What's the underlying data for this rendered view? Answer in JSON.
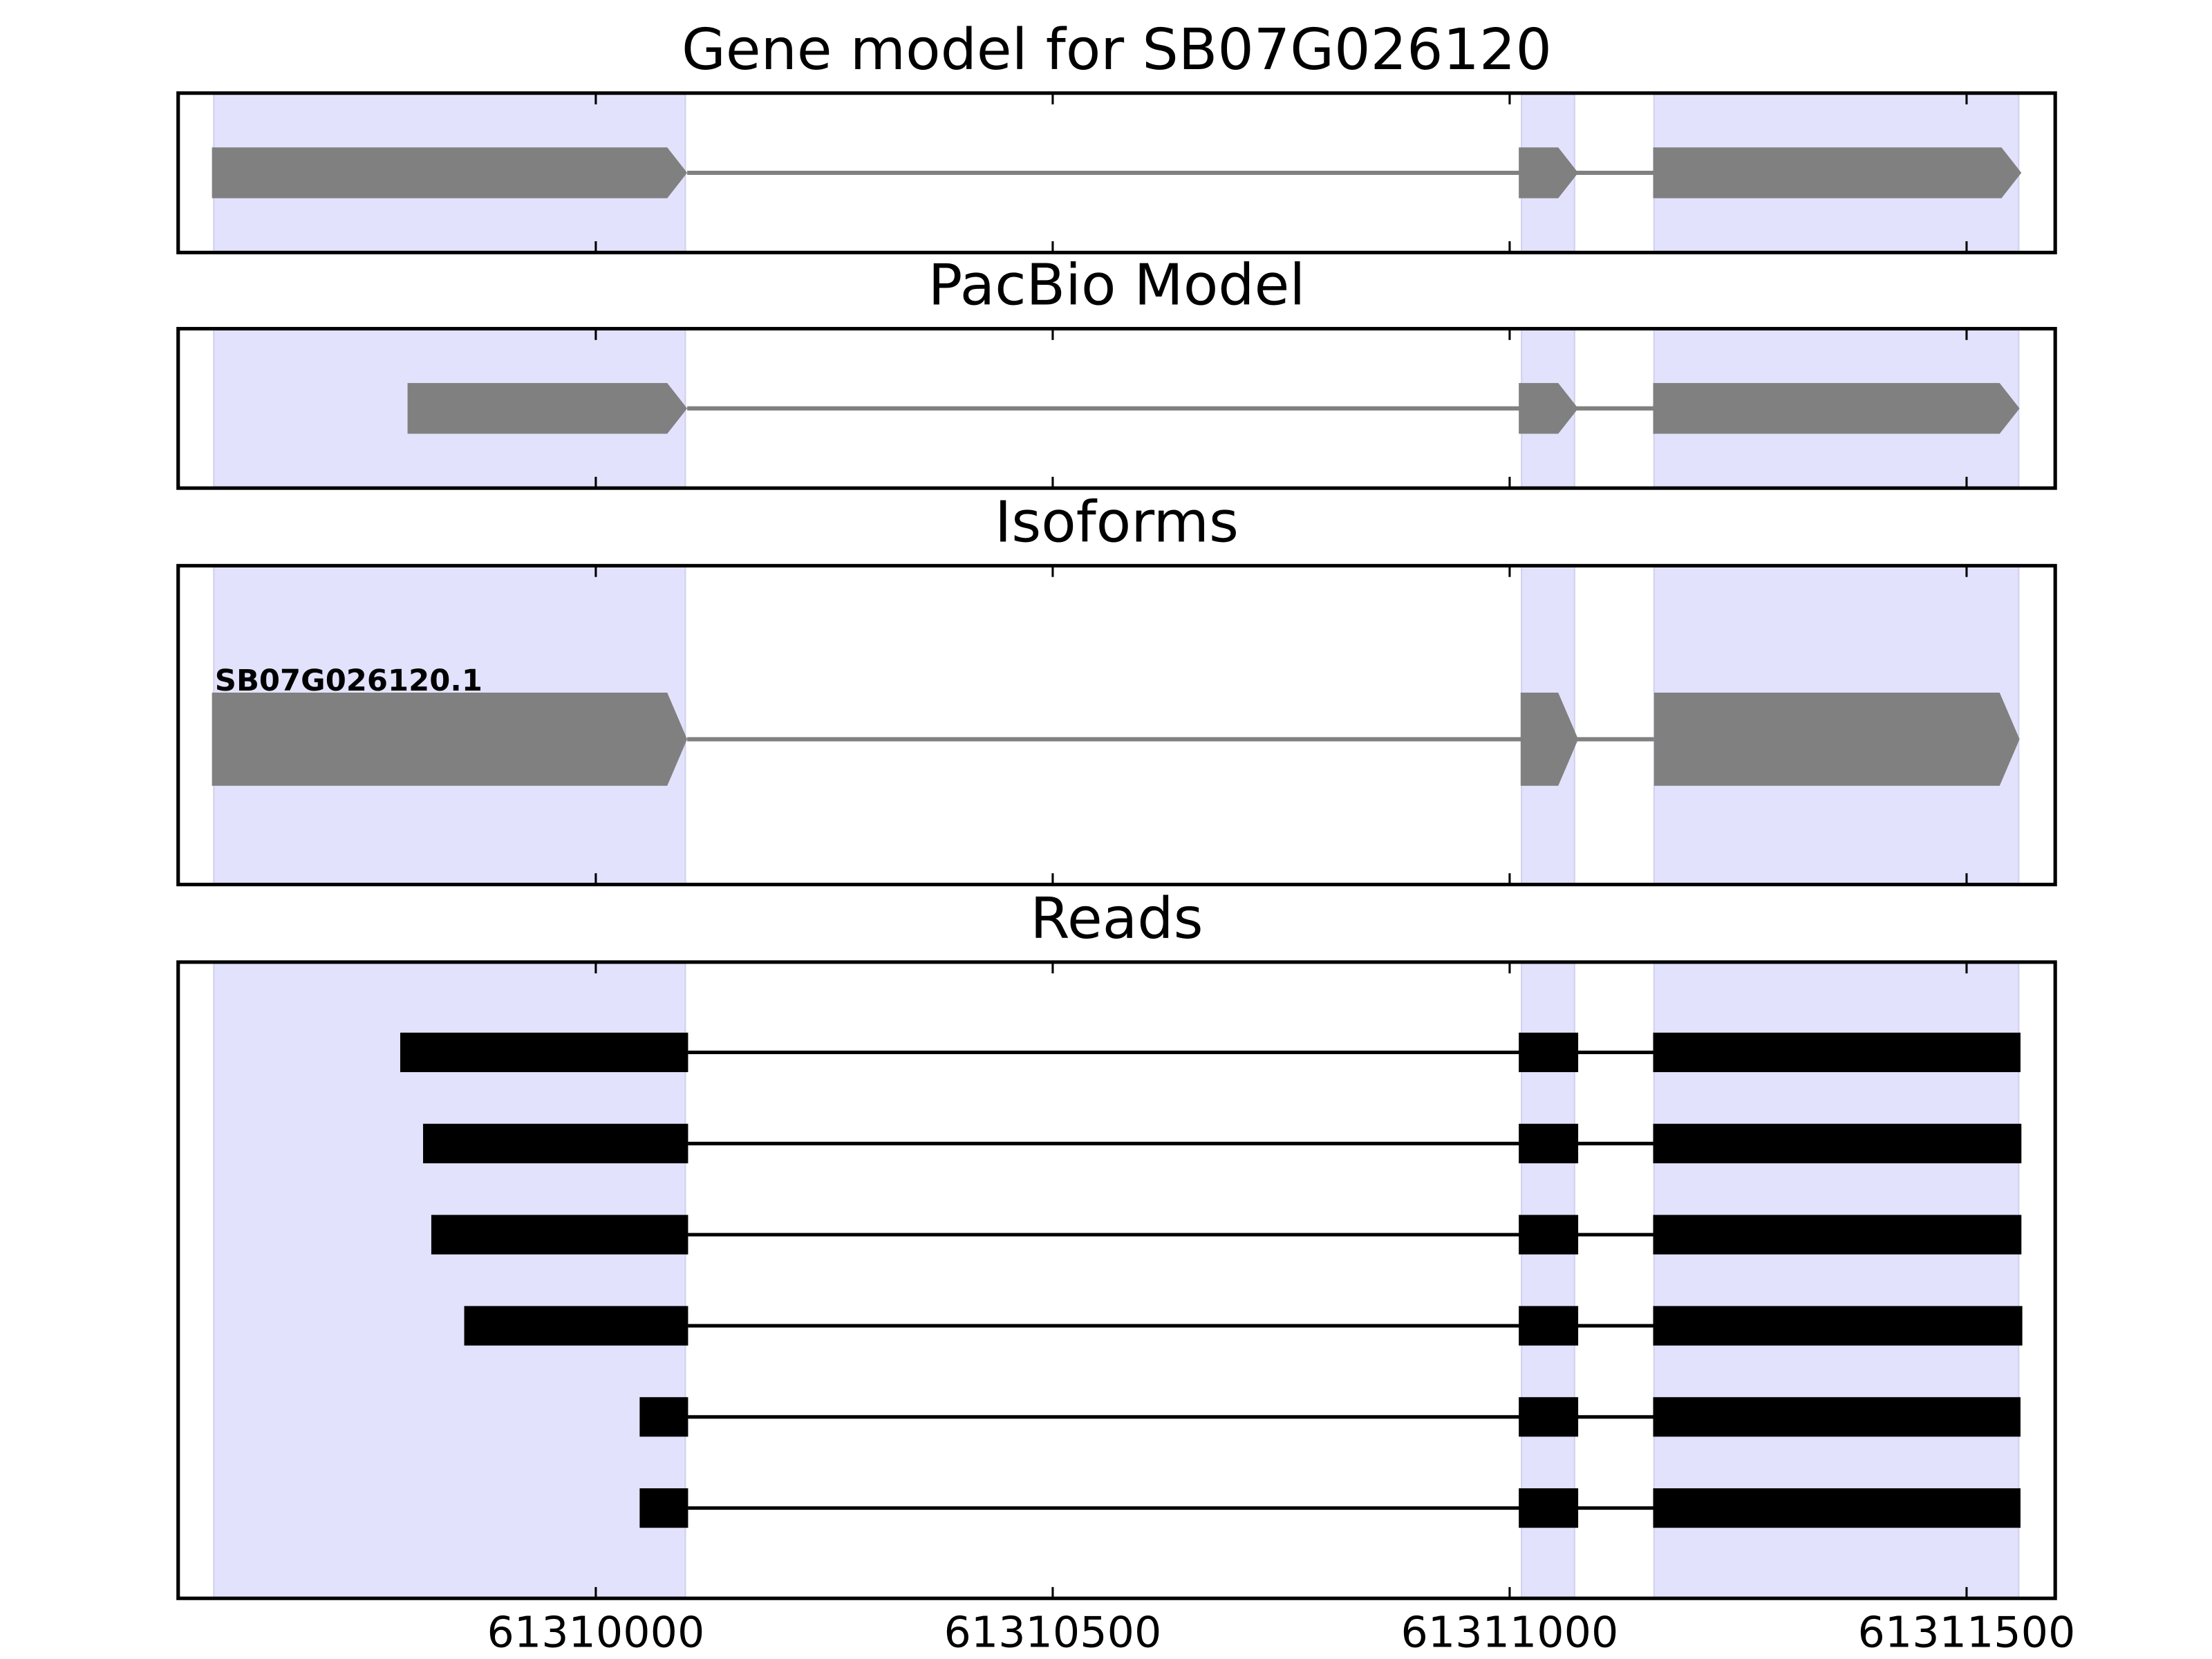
{
  "chart_data": {
    "type": "gene-tracks",
    "xlim": [
      61309543,
      61311597
    ],
    "xticks": [
      61310000,
      61310500,
      61311000,
      61311500
    ],
    "highlights": [
      [
        61309582,
        61310098
      ],
      [
        61311013,
        61311071
      ],
      [
        61311158,
        61311557
      ]
    ],
    "highlight_color": "#e2e2fc",
    "panels": [
      {
        "title": "Gene model for SB07G026120",
        "style": "gene",
        "color": "#808080",
        "tracks": [
          {
            "exons": [
              [
                61309580,
                61310100
              ],
              [
                61311010,
                61311075
              ],
              [
                61311157,
                61311560
              ]
            ]
          }
        ]
      },
      {
        "title": "PacBio Model",
        "style": "gene",
        "color": "#808080",
        "tracks": [
          {
            "exons": [
              [
                61309794,
                61310100
              ],
              [
                61311010,
                61311075
              ],
              [
                61311157,
                61311558
              ]
            ]
          }
        ]
      },
      {
        "title": "Isoforms",
        "style": "gene",
        "color": "#808080",
        "tracks": [
          {
            "name": "SB07G026120.1",
            "exons": [
              [
                61309580,
                61310100
              ],
              [
                61311012,
                61311075
              ],
              [
                61311158,
                61311558
              ]
            ]
          }
        ]
      },
      {
        "title": "Reads",
        "style": "read",
        "color": "#000000",
        "tracks": [
          {
            "exons": [
              [
                61309786,
                61310101
              ],
              [
                61311010,
                61311075
              ],
              [
                61311157,
                61311559
              ]
            ]
          },
          {
            "exons": [
              [
                61309811,
                61310101
              ],
              [
                61311010,
                61311075
              ],
              [
                61311157,
                61311560
              ]
            ]
          },
          {
            "exons": [
              [
                61309820,
                61310101
              ],
              [
                61311010,
                61311075
              ],
              [
                61311157,
                61311560
              ]
            ]
          },
          {
            "exons": [
              [
                61309856,
                61310101
              ],
              [
                61311010,
                61311075
              ],
              [
                61311157,
                61311561
              ]
            ]
          },
          {
            "exons": [
              [
                61310048,
                61310101
              ],
              [
                61311010,
                61311075
              ],
              [
                61311157,
                61311559
              ]
            ]
          },
          {
            "exons": [
              [
                61310048,
                61310101
              ],
              [
                61311010,
                61311075
              ],
              [
                61311157,
                61311559
              ]
            ]
          }
        ]
      }
    ]
  }
}
